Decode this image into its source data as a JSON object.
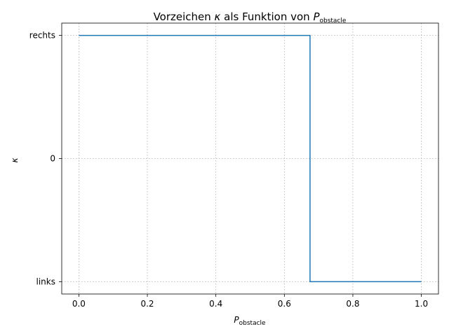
{
  "chart_data": {
    "type": "line",
    "title_prefix": "Vorzeichen ",
    "title_kappa": "κ",
    "title_middle": " als Funktion von ",
    "title_var": "P",
    "title_sub": "obstacle",
    "xlabel_var": "P",
    "xlabel_sub": "obstacle",
    "ylabel": "κ",
    "xlim": [
      -0.05,
      1.05
    ],
    "ylim": [
      -1.1,
      1.1
    ],
    "xticks": [
      0.0,
      0.2,
      0.4,
      0.6,
      0.8,
      1.0
    ],
    "xtick_labels": [
      "0.0",
      "0.2",
      "0.4",
      "0.6",
      "0.8",
      "1.0"
    ],
    "yticks": [
      -1,
      0,
      1
    ],
    "ytick_labels": [
      "links",
      "0",
      "rechts"
    ],
    "grid": true,
    "series": [
      {
        "color": "#1f77b4",
        "step": true,
        "x": [
          0.0,
          0.675,
          0.675,
          1.0
        ],
        "y": [
          1,
          1,
          -1,
          -1
        ]
      }
    ]
  }
}
